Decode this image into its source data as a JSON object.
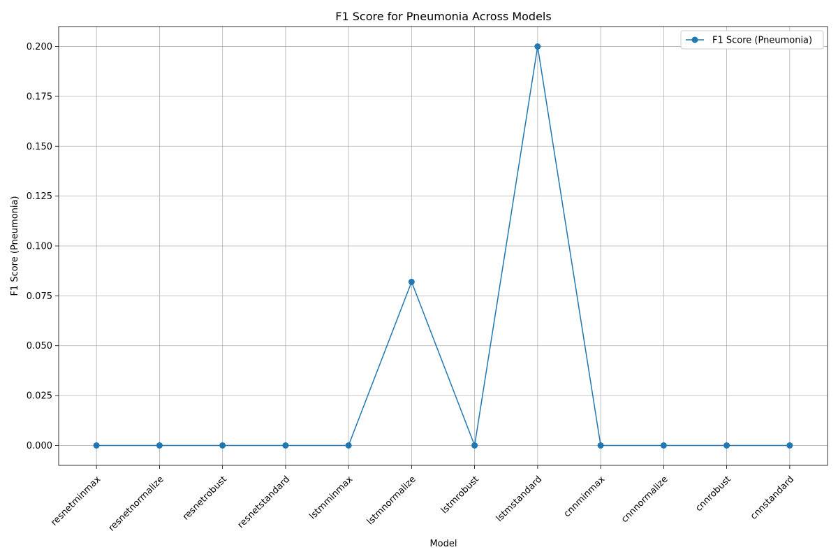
{
  "chart_data": {
    "type": "line",
    "title": "F1 Score for Pneumonia Across Models",
    "xlabel": "Model",
    "ylabel": "F1 Score (Pneumonia)",
    "categories": [
      "resnetminmax",
      "resnetnormalize",
      "resnetrobust",
      "resnetstandard",
      "lstmminmax",
      "lstmnormalize",
      "lstmrobust",
      "lstmstandard",
      "cnnminmax",
      "cnnnormalize",
      "cnnrobust",
      "cnnstandard"
    ],
    "series": [
      {
        "name": "F1 Score (Pneumonia)",
        "values": [
          0.0,
          0.0,
          0.0,
          0.0,
          0.0,
          0.082,
          0.0,
          0.2,
          0.0,
          0.0,
          0.0,
          0.0
        ],
        "color": "#1f77b4",
        "marker": "circle"
      }
    ],
    "ylim": [
      -0.01,
      0.21
    ],
    "yticks": [
      "0.000",
      "0.025",
      "0.050",
      "0.075",
      "0.100",
      "0.125",
      "0.150",
      "0.175",
      "0.200"
    ],
    "grid": true,
    "legend_position": "top-right",
    "xtick_rotation": "45"
  }
}
